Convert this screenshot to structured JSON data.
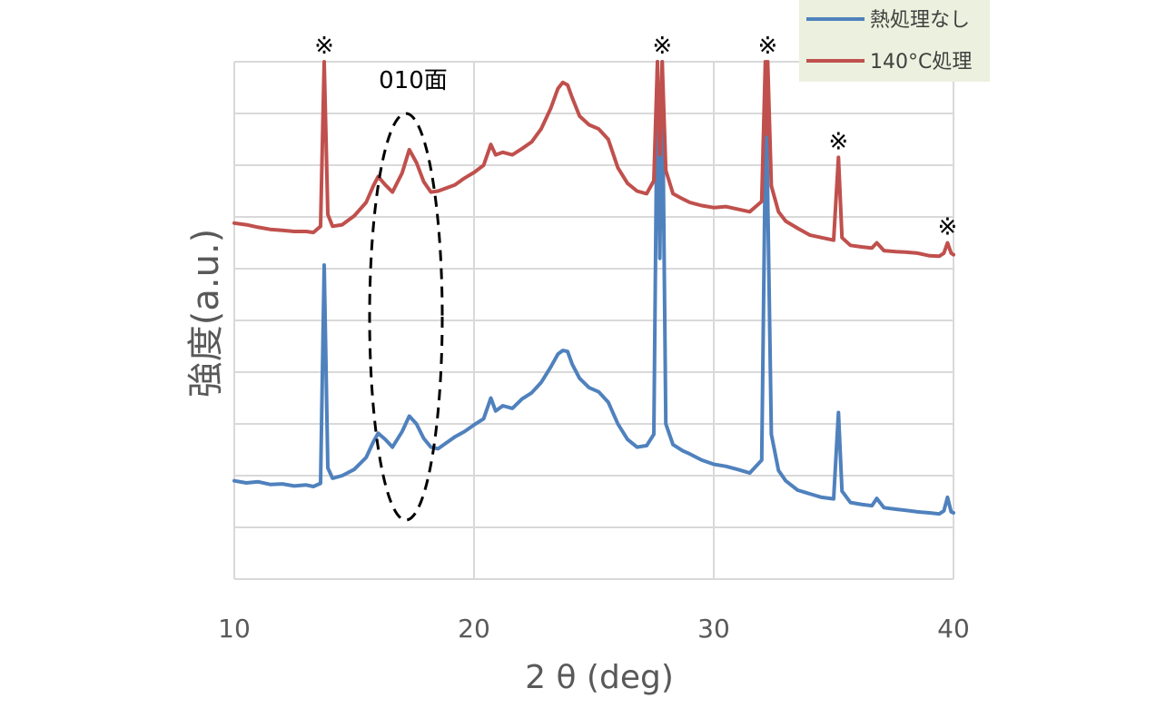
{
  "chart_data": {
    "type": "line",
    "xlabel": "2 θ (deg)",
    "ylabel": "強度(a.u.)",
    "xlim": [
      10,
      40
    ],
    "ylim": [
      0,
      10
    ],
    "xticks": [
      10,
      20,
      30,
      40
    ],
    "grid": true,
    "legend": "top-right",
    "x": [
      10.0,
      10.5,
      11.0,
      11.5,
      12.0,
      12.5,
      13.0,
      13.3,
      13.6,
      13.75,
      13.9,
      14.1,
      14.5,
      15.0,
      15.5,
      15.8,
      16.0,
      16.3,
      16.6,
      17.0,
      17.3,
      17.6,
      17.9,
      18.2,
      18.5,
      18.8,
      19.2,
      19.6,
      20.0,
      20.4,
      20.7,
      20.9,
      21.2,
      21.6,
      22.0,
      22.4,
      22.8,
      23.2,
      23.5,
      23.7,
      23.9,
      24.1,
      24.4,
      24.8,
      25.2,
      25.6,
      26.0,
      26.4,
      26.8,
      27.2,
      27.5,
      27.65,
      27.75,
      27.85,
      28.0,
      28.3,
      28.7,
      29.0,
      29.5,
      30.0,
      30.5,
      31.0,
      31.5,
      32.0,
      32.15,
      32.2,
      32.25,
      32.4,
      32.7,
      33.0,
      33.5,
      34.0,
      34.5,
      35.0,
      35.2,
      35.35,
      35.7,
      36.2,
      36.6,
      36.8,
      37.1,
      37.6,
      38.0,
      38.5,
      39.0,
      39.4,
      39.6,
      39.75,
      39.9,
      40.0
    ],
    "series": [
      {
        "name": "熱処理なし",
        "color": "#4F81BD",
        "y": [
          1.9,
          1.86,
          1.88,
          1.83,
          1.84,
          1.8,
          1.82,
          1.79,
          1.85,
          6.07,
          2.15,
          1.95,
          2.0,
          2.12,
          2.35,
          2.65,
          2.82,
          2.7,
          2.55,
          2.85,
          3.15,
          3.0,
          2.72,
          2.55,
          2.52,
          2.62,
          2.75,
          2.85,
          2.98,
          3.1,
          3.5,
          3.25,
          3.35,
          3.3,
          3.48,
          3.6,
          3.8,
          4.1,
          4.35,
          4.42,
          4.4,
          4.15,
          3.88,
          3.7,
          3.62,
          3.42,
          3.0,
          2.7,
          2.55,
          2.58,
          2.8,
          10.0,
          6.2,
          10.0,
          3.0,
          2.6,
          2.48,
          2.42,
          2.3,
          2.22,
          2.18,
          2.12,
          2.05,
          2.3,
          8.2,
          8.9,
          7.4,
          2.8,
          2.1,
          1.9,
          1.72,
          1.65,
          1.58,
          1.55,
          3.22,
          1.7,
          1.48,
          1.44,
          1.42,
          1.56,
          1.38,
          1.35,
          1.33,
          1.3,
          1.28,
          1.26,
          1.32,
          1.58,
          1.3,
          1.28
        ]
      },
      {
        "name": "140°C処理",
        "color": "#C0504D",
        "y": [
          6.88,
          6.85,
          6.8,
          6.76,
          6.74,
          6.72,
          6.72,
          6.7,
          6.82,
          10.0,
          7.05,
          6.82,
          6.85,
          7.02,
          7.28,
          7.6,
          7.78,
          7.62,
          7.48,
          7.85,
          8.3,
          8.05,
          7.68,
          7.48,
          7.5,
          7.55,
          7.62,
          7.75,
          7.86,
          8.0,
          8.4,
          8.2,
          8.25,
          8.2,
          8.32,
          8.45,
          8.7,
          9.1,
          9.48,
          9.6,
          9.55,
          9.3,
          8.95,
          8.78,
          8.7,
          8.5,
          7.95,
          7.65,
          7.5,
          7.45,
          7.7,
          10.0,
          8.2,
          10.0,
          7.9,
          7.45,
          7.35,
          7.28,
          7.22,
          7.18,
          7.2,
          7.15,
          7.1,
          7.3,
          10.0,
          8.6,
          10.0,
          7.6,
          7.1,
          6.92,
          6.78,
          6.65,
          6.6,
          6.55,
          8.15,
          6.6,
          6.45,
          6.42,
          6.4,
          6.5,
          6.35,
          6.33,
          6.32,
          6.3,
          6.25,
          6.24,
          6.3,
          6.5,
          6.3,
          6.27
        ]
      }
    ],
    "annotations": {
      "peak_marker": "※",
      "marked_peaks_x": [
        13.75,
        27.85,
        32.25,
        35.2,
        39.75
      ],
      "plane_label": "010面"
    }
  }
}
